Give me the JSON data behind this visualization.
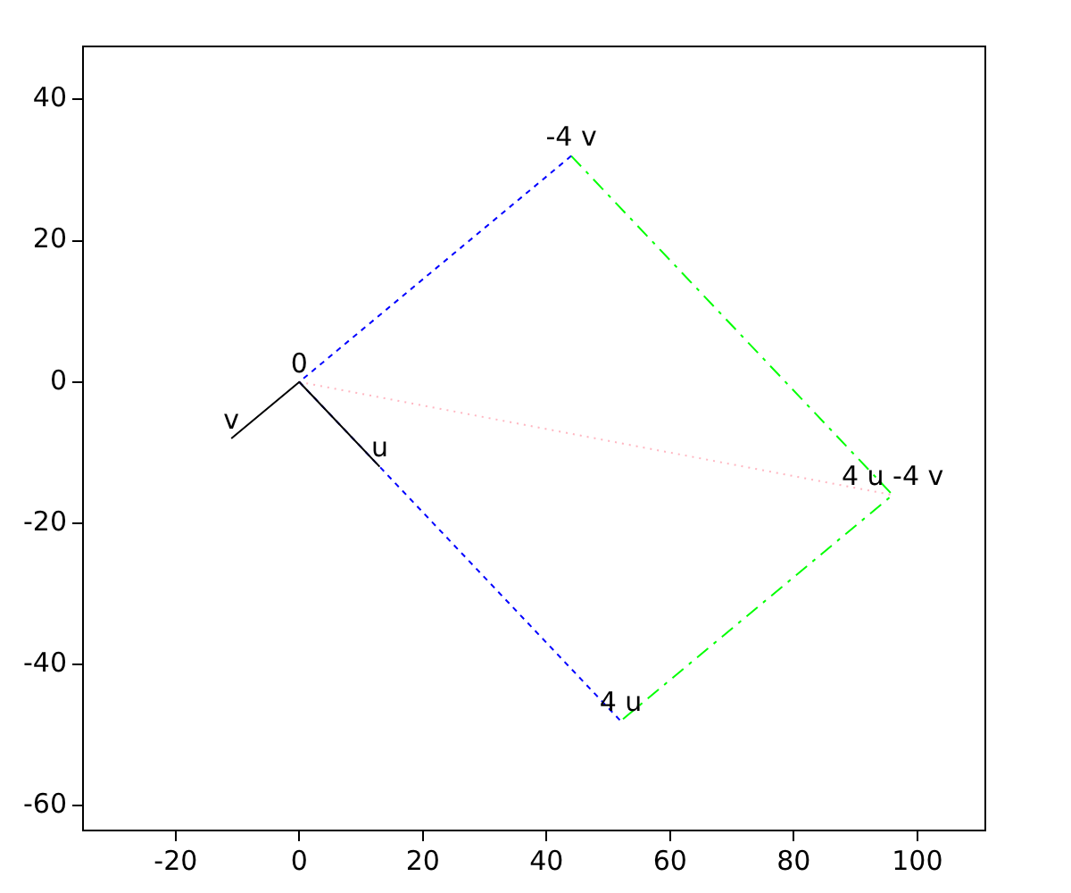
{
  "chart_data": {
    "type": "line",
    "series": [
      {
        "color": "#000000",
        "line_style": "solid",
        "x": [
          -11,
          0,
          13
        ],
        "values": [
          -8,
          0,
          -12
        ]
      },
      {
        "color": "#0000ff",
        "line_style": "dashed",
        "x": [
          44,
          0,
          52
        ],
        "values": [
          32,
          0,
          -48
        ]
      },
      {
        "color": "#00ff00",
        "line_style": "dashdot",
        "x": [
          44,
          96,
          52
        ],
        "values": [
          32,
          -16,
          -48
        ]
      },
      {
        "color": "#ffb6c1",
        "line_style": "dotted",
        "x": [
          0,
          96
        ],
        "values": [
          0,
          -16
        ]
      }
    ],
    "xlim": [
      -35,
      111
    ],
    "xticks": [
      -20,
      0,
      20,
      40,
      60,
      80,
      100
    ],
    "ylim": [
      -63.5,
      47.5
    ],
    "yticks": [
      -60,
      -40,
      -20,
      0,
      20,
      40
    ],
    "grid": false,
    "legend": false,
    "marker": "none",
    "annotations": [
      {
        "text": "0",
        "x": 0,
        "y": 0
      },
      {
        "text": "v",
        "x": -11,
        "y": -8
      },
      {
        "text": "u",
        "x": 13,
        "y": -12
      },
      {
        "text": "-4 v",
        "x": 44,
        "y": 32
      },
      {
        "text": "4 u",
        "x": 52,
        "y": -48
      },
      {
        "text": "4 u -4 v",
        "x": 96,
        "y": -16
      }
    ]
  }
}
